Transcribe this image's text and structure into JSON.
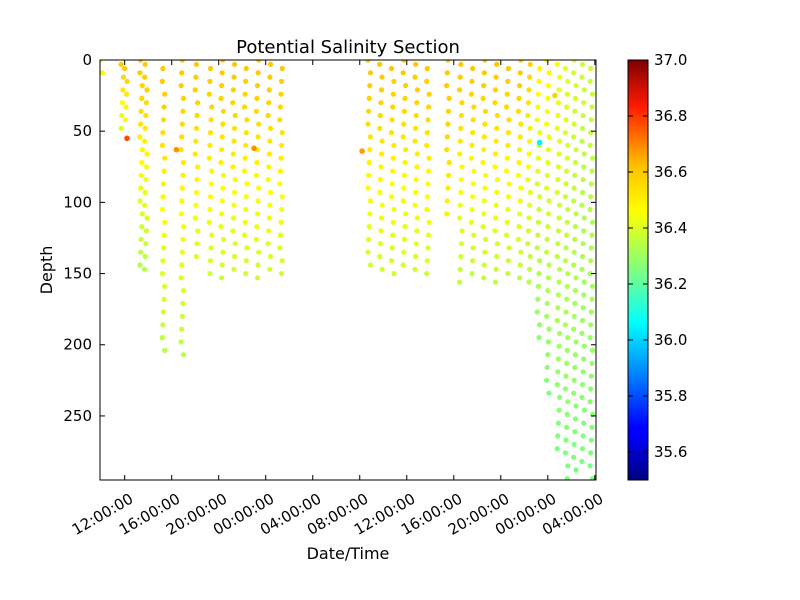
{
  "chart_data": {
    "type": "scatter",
    "title": "Potential Salinity Section",
    "xlabel": "Date/Time",
    "ylabel": "Depth",
    "x_range_hours": [
      9.9,
      52.1
    ],
    "ylim": [
      295,
      0
    ],
    "y_inverted": true,
    "x_ticks": [
      {
        "hour": 12,
        "label": "12:00:00"
      },
      {
        "hour": 16,
        "label": "16:00:00"
      },
      {
        "hour": 20,
        "label": "20:00:00"
      },
      {
        "hour": 24,
        "label": "00:00:00"
      },
      {
        "hour": 28,
        "label": "04:00:00"
      },
      {
        "hour": 32,
        "label": "08:00:00"
      },
      {
        "hour": 36,
        "label": "12:00:00"
      },
      {
        "hour": 40,
        "label": "16:00:00"
      },
      {
        "hour": 44,
        "label": "20:00:00"
      },
      {
        "hour": 48,
        "label": "00:00:00"
      },
      {
        "hour": 52,
        "label": "04:00:00"
      }
    ],
    "y_ticks": [
      0,
      50,
      100,
      150,
      200,
      250
    ],
    "colorbar": {
      "min": 35.5,
      "max": 37.0,
      "colormap": "jet",
      "ticks": [
        "37.0",
        "36.8",
        "36.6",
        "36.4",
        "36.2",
        "36.0",
        "35.8",
        "35.6"
      ]
    },
    "profiles": [
      {
        "x": 10.0,
        "max_depth": 10,
        "s_surface": 36.45,
        "s_deep": 36.45
      },
      {
        "x": 11.8,
        "max_depth": 55,
        "s_surface": 36.52,
        "s_deep": 36.36
      },
      {
        "x": 12.1,
        "max_depth": 50,
        "s_surface": 36.52,
        "s_deep": 36.4
      },
      {
        "x": 13.4,
        "max_depth": 150,
        "s_surface": 36.52,
        "s_deep": 36.32
      },
      {
        "x": 13.8,
        "max_depth": 150,
        "s_surface": 36.52,
        "s_deep": 36.32
      },
      {
        "x": 15.3,
        "max_depth": 208,
        "s_surface": 36.52,
        "s_deep": 36.33
      },
      {
        "x": 16.9,
        "max_depth": 208,
        "s_surface": 36.52,
        "s_deep": 36.33
      },
      {
        "x": 18.1,
        "max_depth": 145,
        "s_surface": 36.52,
        "s_deep": 36.38
      },
      {
        "x": 19.3,
        "max_depth": 155,
        "s_surface": 36.52,
        "s_deep": 36.36
      },
      {
        "x": 20.3,
        "max_depth": 155,
        "s_surface": 36.52,
        "s_deep": 36.36
      },
      {
        "x": 21.3,
        "max_depth": 155,
        "s_surface": 36.52,
        "s_deep": 36.36
      },
      {
        "x": 22.3,
        "max_depth": 155,
        "s_surface": 36.52,
        "s_deep": 36.36
      },
      {
        "x": 23.3,
        "max_depth": 155,
        "s_surface": 36.52,
        "s_deep": 36.36
      },
      {
        "x": 24.3,
        "max_depth": 155,
        "s_surface": 36.52,
        "s_deep": 36.36
      },
      {
        "x": 25.3,
        "max_depth": 155,
        "s_surface": 36.52,
        "s_deep": 36.36
      },
      {
        "x": 32.8,
        "max_depth": 152,
        "s_surface": 36.52,
        "s_deep": 36.36
      },
      {
        "x": 33.8,
        "max_depth": 152,
        "s_surface": 36.52,
        "s_deep": 36.36
      },
      {
        "x": 34.8,
        "max_depth": 152,
        "s_surface": 36.52,
        "s_deep": 36.36
      },
      {
        "x": 35.8,
        "max_depth": 152,
        "s_surface": 36.52,
        "s_deep": 36.36
      },
      {
        "x": 36.8,
        "max_depth": 152,
        "s_surface": 36.52,
        "s_deep": 36.36
      },
      {
        "x": 37.8,
        "max_depth": 152,
        "s_surface": 36.52,
        "s_deep": 36.36
      },
      {
        "x": 39.5,
        "max_depth": 110,
        "s_surface": 36.52,
        "s_deep": 36.45
      },
      {
        "x": 40.6,
        "max_depth": 157,
        "s_surface": 36.52,
        "s_deep": 36.34
      },
      {
        "x": 41.6,
        "max_depth": 157,
        "s_surface": 36.52,
        "s_deep": 36.34
      },
      {
        "x": 42.6,
        "max_depth": 157,
        "s_surface": 36.52,
        "s_deep": 36.34
      },
      {
        "x": 43.6,
        "max_depth": 157,
        "s_surface": 36.52,
        "s_deep": 36.34
      },
      {
        "x": 44.6,
        "max_depth": 157,
        "s_surface": 36.52,
        "s_deep": 36.34
      },
      {
        "x": 45.6,
        "max_depth": 157,
        "s_surface": 36.52,
        "s_deep": 36.34
      },
      {
        "x": 46.4,
        "max_depth": 160,
        "s_surface": 36.5,
        "s_deep": 36.32
      },
      {
        "x": 47.2,
        "max_depth": 200,
        "s_surface": 36.45,
        "s_deep": 36.26
      },
      {
        "x": 48.0,
        "max_depth": 240,
        "s_surface": 36.45,
        "s_deep": 36.24
      },
      {
        "x": 48.9,
        "max_depth": 280,
        "s_surface": 36.42,
        "s_deep": 36.24
      },
      {
        "x": 49.6,
        "max_depth": 295,
        "s_surface": 36.4,
        "s_deep": 36.24
      },
      {
        "x": 50.3,
        "max_depth": 290,
        "s_surface": 36.38,
        "s_deep": 36.24
      },
      {
        "x": 51.0,
        "max_depth": 290,
        "s_surface": 36.36,
        "s_deep": 36.24
      },
      {
        "x": 51.7,
        "max_depth": 295,
        "s_surface": 36.36,
        "s_deep": 36.24
      }
    ],
    "special_points": [
      {
        "x": 12.2,
        "depth": 55,
        "salinity": 36.7
      },
      {
        "x": 16.4,
        "depth": 63,
        "salinity": 36.6
      },
      {
        "x": 23.0,
        "depth": 62,
        "salinity": 36.6
      },
      {
        "x": 32.2,
        "depth": 64,
        "salinity": 36.58
      },
      {
        "x": 47.3,
        "depth": 58,
        "salinity": 36.05
      },
      {
        "x": 48.6,
        "depth": 25,
        "salinity": 36.5
      }
    ]
  }
}
